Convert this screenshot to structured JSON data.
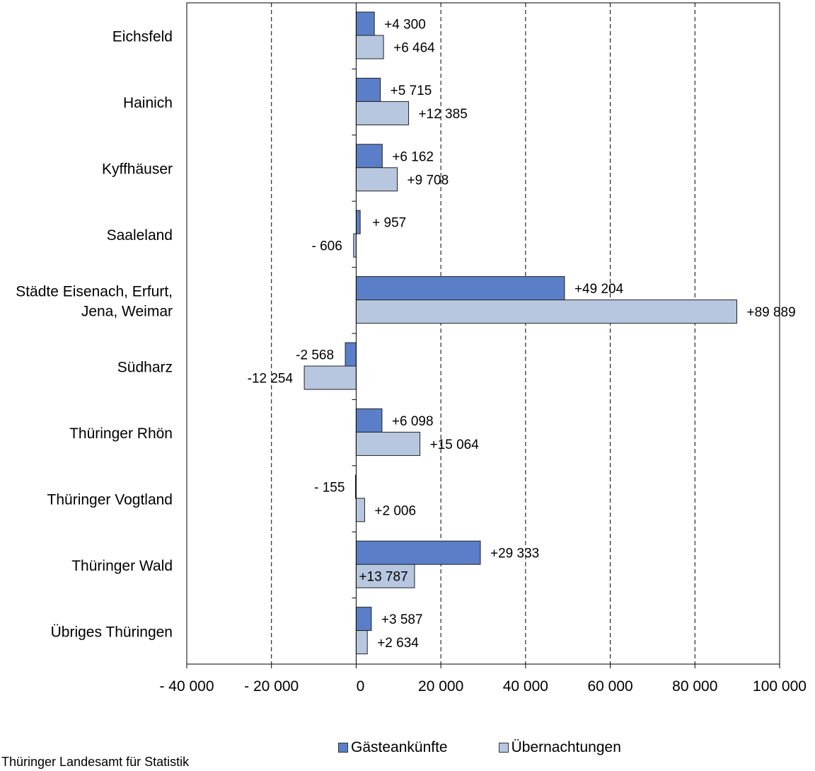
{
  "chart_data": {
    "type": "bar",
    "orientation": "horizontal",
    "title": "",
    "xlabel": "",
    "ylabel": "",
    "categories": [
      "Eichsfeld",
      "Hainich",
      "Kyffhäuser",
      "Saaleland",
      "Städte Eisenach, Erfurt,\nJena, Weimar",
      "Südharz",
      "Thüringer Rhön",
      "Thüringer Vogtland",
      "Thüringer Wald",
      "Übriges Thüringen"
    ],
    "series": [
      {
        "name": "Gästeankünfte",
        "color": "#5a7fc8",
        "values": [
          4300,
          5715,
          6162,
          957,
          49204,
          -2568,
          6098,
          -155,
          29333,
          3587
        ],
        "labels": [
          "+4 300",
          "+5 715",
          "+6 162",
          "+ 957",
          "+49 204",
          "-2 568",
          "+6 098",
          "- 155",
          "+29 333",
          "+3 587"
        ]
      },
      {
        "name": "Übernachtungen",
        "color": "#b8c7e0",
        "values": [
          6464,
          12385,
          9708,
          -606,
          89889,
          -12254,
          15064,
          2006,
          13787,
          2634
        ],
        "labels": [
          "+6 464",
          "+12 385",
          "+9 708",
          "- 606",
          "+89 889",
          "-12 254",
          "+15 064",
          "+2 006",
          "+13 787",
          "+2 634"
        ]
      }
    ],
    "xlim": [
      -40000,
      100000
    ],
    "xticks": [
      -40000,
      -20000,
      0,
      20000,
      40000,
      60000,
      80000,
      100000
    ],
    "xtick_labels": [
      "- 40 000",
      "- 20 000",
      "0",
      "20 000",
      "40 000",
      "60 000",
      "80 000",
      "100 000"
    ],
    "grid": "vertical dashed",
    "legend_position": "bottom"
  },
  "source": "Thüringer Landesamt für Statistik"
}
